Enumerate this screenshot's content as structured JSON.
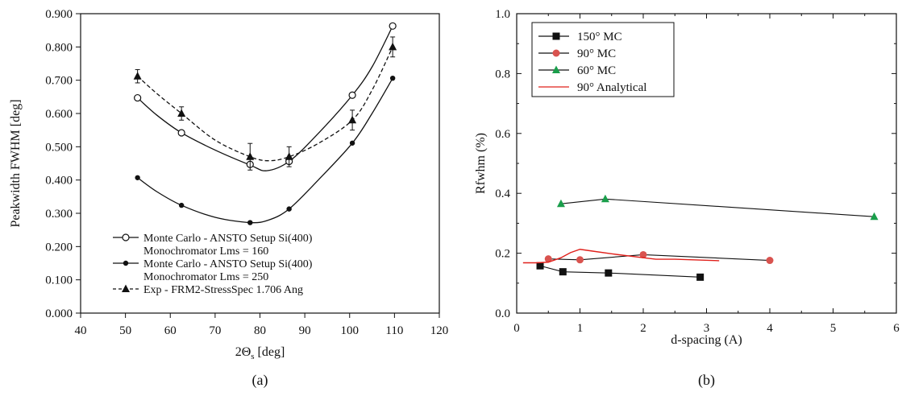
{
  "chart_data": [
    {
      "panel_label": "(a)",
      "type": "line",
      "xlabel_main": "2Θ",
      "xlabel_sub": "s",
      "xlabel_unit": " [deg]",
      "ylabel": "Peakwidth FWHM [deg]",
      "xlim": [
        40,
        120
      ],
      "ylim": [
        0,
        0.9
      ],
      "xticks": [
        "40",
        "50",
        "60",
        "70",
        "80",
        "90",
        "100",
        "110",
        "120"
      ],
      "xtick_values": [
        40,
        50,
        60,
        70,
        80,
        90,
        100,
        110,
        120
      ],
      "yticks": [
        "0.000",
        "0.100",
        "0.200",
        "0.300",
        "0.400",
        "0.500",
        "0.600",
        "0.700",
        "0.800",
        "0.900"
      ],
      "ytick_values": [
        0,
        0.1,
        0.2,
        0.3,
        0.4,
        0.5,
        0.6,
        0.7,
        0.8,
        0.9
      ],
      "legend_position": "bottom-left",
      "series": [
        {
          "name": "Monte Carlo - ANSTO Setup Si(400) Monochromator Lms = 160",
          "legend_lines": [
            "Monte Carlo - ANSTO Setup Si(400)",
            "Monochromator Lms = 160"
          ],
          "marker": "open-circle",
          "line": "solid",
          "x": [
            52.7,
            62.5,
            77.8,
            86.5,
            100.6,
            109.6
          ],
          "y": [
            0.647,
            0.542,
            0.447,
            0.456,
            0.655,
            0.863
          ],
          "curve": [
            [
              52.7,
              0.647
            ],
            [
              57,
              0.595
            ],
            [
              62.5,
              0.542
            ],
            [
              70,
              0.49
            ],
            [
              77.8,
              0.445
            ],
            [
              81.5,
              0.428
            ],
            [
              86.5,
              0.456
            ],
            [
              93,
              0.54
            ],
            [
              100.6,
              0.655
            ],
            [
              105,
              0.74
            ],
            [
              109.6,
              0.863
            ]
          ]
        },
        {
          "name": "Monte Carlo - ANSTO Setup Si(400) Monochromator Lms = 250",
          "legend_lines": [
            "Monte Carlo - ANSTO Setup Si(400)",
            "Monochromator Lms = 250"
          ],
          "marker": "filled-circle",
          "line": "solid",
          "x": [
            52.7,
            62.5,
            77.8,
            86.5,
            100.6,
            109.6
          ],
          "y": [
            0.407,
            0.324,
            0.272,
            0.313,
            0.511,
            0.706
          ],
          "curve": [
            [
              52.7,
              0.407
            ],
            [
              57,
              0.365
            ],
            [
              62.5,
              0.324
            ],
            [
              70,
              0.288
            ],
            [
              77.8,
              0.272
            ],
            [
              82,
              0.28
            ],
            [
              86.5,
              0.313
            ],
            [
              93,
              0.4
            ],
            [
              100.6,
              0.511
            ],
            [
              105,
              0.6
            ],
            [
              109.6,
              0.706
            ]
          ]
        },
        {
          "name": "Exp - FRM2-StressSpec 1.706 Ang",
          "legend_lines": [
            "Exp - FRM2-StressSpec 1.706 Ang"
          ],
          "marker": "filled-triangle",
          "line": "dashed",
          "x": [
            52.7,
            62.5,
            77.8,
            86.5,
            100.6,
            109.6
          ],
          "y": [
            0.712,
            0.6,
            0.47,
            0.47,
            0.58,
            0.8
          ],
          "yerr": [
            0.02,
            0.02,
            0.04,
            0.03,
            0.03,
            0.03
          ],
          "curve": [
            [
              52.7,
              0.712
            ],
            [
              57,
              0.66
            ],
            [
              62.5,
              0.6
            ],
            [
              70,
              0.52
            ],
            [
              77.8,
              0.47
            ],
            [
              82,
              0.458
            ],
            [
              86.5,
              0.47
            ],
            [
              93,
              0.51
            ],
            [
              100.6,
              0.58
            ],
            [
              105,
              0.67
            ],
            [
              109.6,
              0.8
            ]
          ]
        }
      ]
    },
    {
      "panel_label": "(b)",
      "type": "line",
      "xlabel": "d-spacing (A)",
      "ylabel": "Rfwhm (%)",
      "xlim": [
        0,
        6
      ],
      "ylim": [
        0,
        1.0
      ],
      "xticks": [
        "0",
        "1",
        "2",
        "3",
        "4",
        "5",
        "6"
      ],
      "xtick_values": [
        0,
        1,
        2,
        3,
        4,
        5,
        6
      ],
      "yticks": [
        "0.0",
        "0.2",
        "0.4",
        "0.6",
        "0.8",
        "1.0"
      ],
      "ytick_values": [
        0,
        0.2,
        0.4,
        0.6,
        0.8,
        1.0
      ],
      "legend_position": "top-left",
      "series": [
        {
          "name": "150° MC",
          "marker": "filled-square",
          "color": "#111111",
          "x": [
            0.37,
            0.73,
            1.45,
            2.9
          ],
          "y": [
            0.158,
            0.138,
            0.134,
            0.12
          ]
        },
        {
          "name": "90° MC",
          "marker": "filled-circle",
          "color": "#d9534f",
          "line_color": "#111111",
          "x": [
            0.5,
            1.0,
            2.0,
            4.0
          ],
          "y": [
            0.181,
            0.178,
            0.195,
            0.176
          ]
        },
        {
          "name": "60° MC",
          "marker": "filled-triangle",
          "color": "#1a9e4b",
          "line_color": "#111111",
          "x": [
            0.7,
            1.4,
            5.65
          ],
          "y": [
            0.365,
            0.381,
            0.322
          ]
        },
        {
          "name": "90° Analytical",
          "marker": "none",
          "color": "#e0201b",
          "x": [
            0.1,
            0.3,
            0.5,
            0.7,
            0.85,
            1.0,
            1.2,
            1.5,
            2.0,
            2.2,
            2.5,
            3.2
          ],
          "y": [
            0.168,
            0.168,
            0.17,
            0.185,
            0.202,
            0.213,
            0.207,
            0.198,
            0.185,
            0.18,
            0.18,
            0.175
          ]
        }
      ]
    }
  ]
}
